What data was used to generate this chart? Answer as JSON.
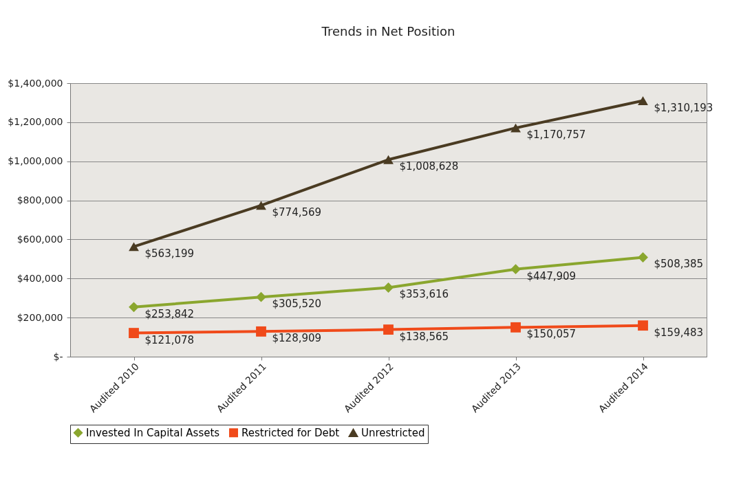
{
  "chart_data": {
    "type": "line",
    "title": "Trends in Net Position",
    "categories": [
      "Audited 2010",
      "Audited 2011",
      "Audited 2012",
      "Audited 2013",
      "Audited 2014"
    ],
    "series": [
      {
        "name": "Invested In Capital Assets",
        "color": "#8aa62e",
        "marker": "diamond",
        "values": [
          253842,
          305520,
          353616,
          447909,
          508385
        ],
        "value_labels": [
          "$253,842",
          "$305,520",
          "$353,616",
          "$447,909",
          "$508,385"
        ]
      },
      {
        "name": "Restricted for Debt",
        "color": "#f04a1a",
        "marker": "square",
        "values": [
          121078,
          128909,
          138565,
          150057,
          159483
        ],
        "value_labels": [
          "$121,078",
          "$128,909",
          "$138,565",
          "$150,057",
          "$159,483"
        ]
      },
      {
        "name": "Unrestricted",
        "color": "#4a3b22",
        "marker": "triangle",
        "values": [
          563199,
          774569,
          1008628,
          1170757,
          1310193
        ],
        "value_labels": [
          "$563,199",
          "$774,569",
          "$1,008,628",
          "$1,170,757",
          "$1,310,193"
        ]
      }
    ],
    "ylim": [
      0,
      1400000
    ],
    "yticks": [
      {
        "value": 0,
        "label": "$-"
      },
      {
        "value": 200000,
        "label": "$200,000"
      },
      {
        "value": 400000,
        "label": "$400,000"
      },
      {
        "value": 600000,
        "label": "$600,000"
      },
      {
        "value": 800000,
        "label": "$800,000"
      },
      {
        "value": 1000000,
        "label": "$1,000,000"
      },
      {
        "value": 1200000,
        "label": "$1,200,000"
      },
      {
        "value": 1400000,
        "label": "$1,400,000"
      }
    ],
    "grid": "y",
    "legend": "bottom",
    "line_style": "solid"
  }
}
